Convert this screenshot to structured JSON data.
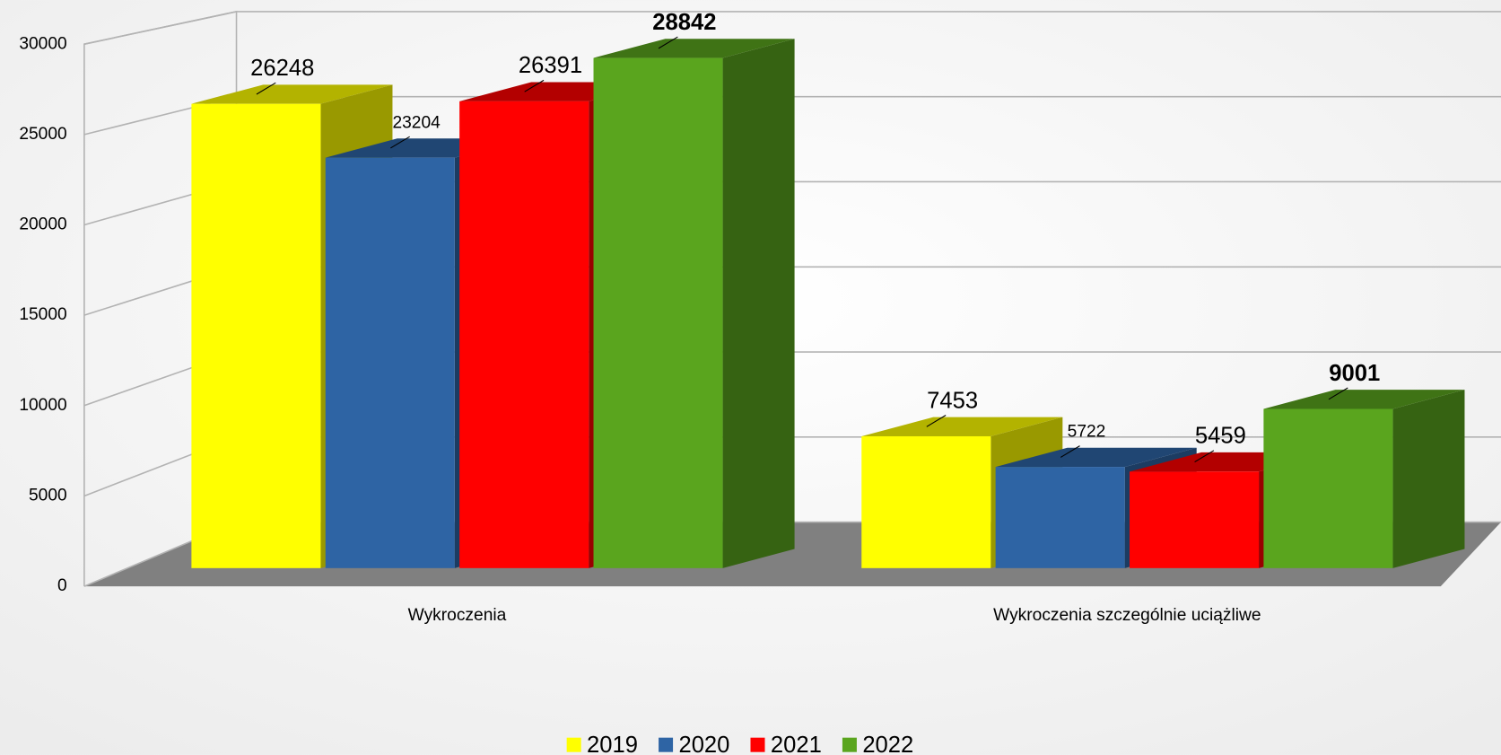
{
  "chart_data": {
    "type": "bar3d",
    "categories": [
      "Wykroczenia",
      "Wykroczenia szczególnie uciążliwe"
    ],
    "series": [
      {
        "name": "2019",
        "color": "#ffff00",
        "values": [
          26248,
          7453
        ]
      },
      {
        "name": "2020",
        "color": "#2e64a4",
        "values": [
          23204,
          5722
        ]
      },
      {
        "name": "2021",
        "color": "#ff0000",
        "values": [
          26391,
          5459
        ]
      },
      {
        "name": "2022",
        "color": "#5aa51e",
        "values": [
          28842,
          9001
        ]
      }
    ],
    "ylim": [
      0,
      30000
    ],
    "yticks": [
      0,
      5000,
      10000,
      15000,
      20000,
      25000,
      30000
    ],
    "grid": true,
    "legend": "bottom"
  }
}
